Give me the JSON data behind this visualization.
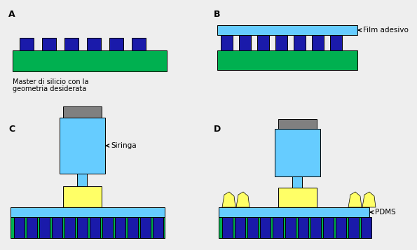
{
  "bg_color": "#eeeeee",
  "green": "#00b050",
  "dark_blue": "#1a1aaa",
  "light_blue": "#66ccff",
  "gray": "#808080",
  "dark_gray": "#606060",
  "yellow": "#ffff66",
  "white": "#ffffff",
  "label_A": "A",
  "label_B": "B",
  "label_C": "C",
  "label_D": "D",
  "text_A_line1": "Master di silicio con la",
  "text_A_line2": "geometria desiderata",
  "annotation_B": "Film adesivo",
  "annotation_C": "Siringa",
  "annotation_D": "PDMS",
  "label_fontsize": 9,
  "annot_fontsize": 7.5,
  "caption_fontsize": 7
}
